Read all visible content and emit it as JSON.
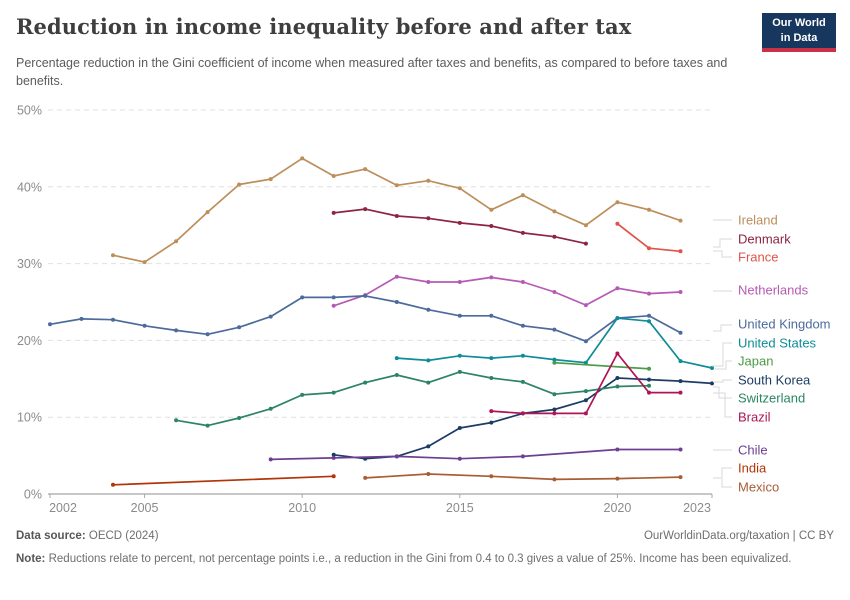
{
  "header": {
    "title": "Reduction in income inequality before and after tax",
    "subtitle": "Percentage reduction in the Gini coefficient of income when measured after taxes and benefits, as compared to before taxes and benefits.",
    "logo_line1": "Our World",
    "logo_line2": "in Data"
  },
  "footer": {
    "source_label": "Data source:",
    "source_value": "OECD (2024)",
    "attribution": "OurWorldinData.org/taxation | CC BY",
    "note_label": "Note:",
    "note_value": "Reductions relate to percent, not percentage points i.e., a reduction in the Gini from 0.4 to 0.3 gives a value of 25%. Income has been equivalized."
  },
  "chart_data": {
    "type": "line",
    "title": "Reduction in income inequality before and after tax",
    "xlabel": "",
    "ylabel": "",
    "ylim": [
      0,
      50
    ],
    "x_range": [
      2002,
      2023
    ],
    "grid": "horizontal-dashed",
    "legend_position": "right-edge-labels",
    "y_ticks": [
      {
        "value": 0,
        "label": "0%"
      },
      {
        "value": 10,
        "label": "10%"
      },
      {
        "value": 20,
        "label": "20%"
      },
      {
        "value": 30,
        "label": "30%"
      },
      {
        "value": 40,
        "label": "40%"
      },
      {
        "value": 50,
        "label": "50%"
      }
    ],
    "x_ticks": [
      2002,
      2005,
      2010,
      2015,
      2020,
      2023
    ],
    "series": [
      {
        "name": "Ireland",
        "color": "#BC8E5A",
        "points": [
          [
            2004,
            31.1
          ],
          [
            2005,
            30.2
          ],
          [
            2006,
            32.9
          ],
          [
            2007,
            36.7
          ],
          [
            2008,
            40.3
          ],
          [
            2009,
            41.0
          ],
          [
            2010,
            43.7
          ],
          [
            2011,
            41.4
          ],
          [
            2012,
            42.3
          ],
          [
            2013,
            40.2
          ],
          [
            2014,
            40.8
          ],
          [
            2015,
            39.8
          ],
          [
            2016,
            37.0
          ],
          [
            2017,
            38.9
          ],
          [
            2018,
            36.8
          ],
          [
            2019,
            35.0
          ],
          [
            2020,
            38.0
          ],
          [
            2021,
            37.0
          ],
          [
            2022,
            35.6
          ]
        ]
      },
      {
        "name": "Denmark",
        "color": "#8C2442",
        "points": [
          [
            2011,
            36.6
          ],
          [
            2012,
            37.1
          ],
          [
            2013,
            36.2
          ],
          [
            2014,
            35.9
          ],
          [
            2015,
            35.3
          ],
          [
            2016,
            34.9
          ],
          [
            2017,
            34.0
          ],
          [
            2018,
            33.5
          ],
          [
            2019,
            32.6
          ]
        ]
      },
      {
        "name": "France",
        "color": "#DD5449",
        "points": [
          [
            2020,
            35.2
          ],
          [
            2021,
            32.0
          ],
          [
            2022,
            31.6
          ]
        ]
      },
      {
        "name": "Netherlands",
        "color": "#B55AB4",
        "points": [
          [
            2011,
            24.5
          ],
          [
            2012,
            25.9
          ],
          [
            2013,
            28.3
          ],
          [
            2014,
            27.6
          ],
          [
            2015,
            27.6
          ],
          [
            2016,
            28.2
          ],
          [
            2017,
            27.6
          ],
          [
            2018,
            26.3
          ],
          [
            2019,
            24.6
          ],
          [
            2020,
            26.8
          ],
          [
            2021,
            26.1
          ],
          [
            2022,
            26.3
          ]
        ]
      },
      {
        "name": "United Kingdom",
        "color": "#4C6A9C",
        "points": [
          [
            2002,
            22.1
          ],
          [
            2003,
            22.8
          ],
          [
            2004,
            22.7
          ],
          [
            2005,
            21.9
          ],
          [
            2006,
            21.3
          ],
          [
            2007,
            20.8
          ],
          [
            2008,
            21.7
          ],
          [
            2009,
            23.1
          ],
          [
            2010,
            25.6
          ],
          [
            2011,
            25.6
          ],
          [
            2012,
            25.8
          ],
          [
            2013,
            25.0
          ],
          [
            2014,
            24.0
          ],
          [
            2015,
            23.2
          ],
          [
            2016,
            23.2
          ],
          [
            2017,
            21.9
          ],
          [
            2018,
            21.4
          ],
          [
            2019,
            19.9
          ],
          [
            2020,
            22.9
          ],
          [
            2021,
            23.2
          ],
          [
            2022,
            21.0
          ]
        ]
      },
      {
        "name": "United States",
        "color": "#0E8C98",
        "points": [
          [
            2013,
            17.7
          ],
          [
            2014,
            17.4
          ],
          [
            2015,
            18.0
          ],
          [
            2016,
            17.7
          ],
          [
            2017,
            18.0
          ],
          [
            2018,
            17.5
          ],
          [
            2019,
            17.1
          ],
          [
            2020,
            22.9
          ],
          [
            2021,
            22.5
          ],
          [
            2022,
            17.3
          ],
          [
            2023,
            16.4
          ]
        ]
      },
      {
        "name": "Japan",
        "color": "#4A9C47",
        "points": [
          [
            2018,
            17.1
          ],
          [
            2021,
            16.3
          ]
        ]
      },
      {
        "name": "South Korea",
        "color": "#1C3C63",
        "points": [
          [
            2011,
            5.1
          ],
          [
            2012,
            4.6
          ],
          [
            2013,
            4.9
          ],
          [
            2014,
            6.2
          ],
          [
            2015,
            8.6
          ],
          [
            2016,
            9.3
          ],
          [
            2017,
            10.5
          ],
          [
            2018,
            11.0
          ],
          [
            2019,
            12.2
          ],
          [
            2020,
            15.1
          ],
          [
            2021,
            14.9
          ],
          [
            2022,
            14.7
          ],
          [
            2023,
            14.4
          ]
        ]
      },
      {
        "name": "Switzerland",
        "color": "#2C8465",
        "points": [
          [
            2006,
            9.6
          ],
          [
            2007,
            8.9
          ],
          [
            2008,
            9.9
          ],
          [
            2009,
            11.1
          ],
          [
            2010,
            12.9
          ],
          [
            2011,
            13.2
          ],
          [
            2012,
            14.5
          ],
          [
            2013,
            15.5
          ],
          [
            2014,
            14.5
          ],
          [
            2015,
            15.9
          ],
          [
            2016,
            15.1
          ],
          [
            2017,
            14.6
          ],
          [
            2018,
            13.0
          ],
          [
            2019,
            13.4
          ],
          [
            2020,
            14.0
          ],
          [
            2021,
            14.1
          ]
        ]
      },
      {
        "name": "Brazil",
        "color": "#AF1457",
        "points": [
          [
            2016,
            10.8
          ],
          [
            2017,
            10.5
          ],
          [
            2018,
            10.5
          ],
          [
            2019,
            10.5
          ],
          [
            2020,
            18.3
          ],
          [
            2021,
            13.2
          ],
          [
            2022,
            13.2
          ]
        ]
      },
      {
        "name": "Chile",
        "color": "#6D3E91",
        "points": [
          [
            2009,
            4.5
          ],
          [
            2011,
            4.7
          ],
          [
            2013,
            4.9
          ],
          [
            2015,
            4.6
          ],
          [
            2017,
            4.9
          ],
          [
            2020,
            5.8
          ],
          [
            2022,
            5.8
          ]
        ]
      },
      {
        "name": "India",
        "color": "#B13507",
        "points": [
          [
            2004,
            1.2
          ],
          [
            2011,
            2.3
          ]
        ]
      },
      {
        "name": "Mexico",
        "color": "#A85D35",
        "points": [
          [
            2012,
            2.1
          ],
          [
            2014,
            2.6
          ],
          [
            2016,
            2.3
          ],
          [
            2018,
            1.9
          ],
          [
            2020,
            2.0
          ],
          [
            2022,
            2.2
          ]
        ]
      }
    ]
  }
}
